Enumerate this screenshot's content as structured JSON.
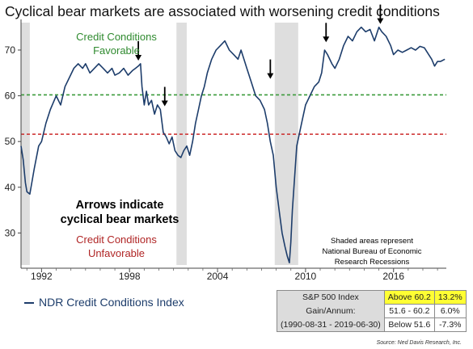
{
  "title": "Cyclical bear markets are associated with worsening credit conditions",
  "chart_data": {
    "type": "line",
    "series": [
      {
        "name": "NDR Credit Conditions Index",
        "color": "#1d3d6b",
        "x": [
          1990.6,
          1990.75,
          1990.9,
          1991.0,
          1991.2,
          1991.5,
          1991.8,
          1992.0,
          1992.3,
          1992.6,
          1993.0,
          1993.3,
          1993.6,
          1993.9,
          1994.2,
          1994.5,
          1994.8,
          1995.0,
          1995.3,
          1995.6,
          1995.9,
          1996.2,
          1996.5,
          1996.8,
          1997.0,
          1997.3,
          1997.6,
          1997.9,
          1998.2,
          1998.4,
          1998.6,
          1998.75,
          1998.85,
          1999.0,
          1999.15,
          1999.3,
          1999.5,
          1999.7,
          1999.9,
          2000.1,
          2000.3,
          2000.5,
          2000.7,
          2000.9,
          2001.1,
          2001.3,
          2001.5,
          2001.7,
          2001.9,
          2002.1,
          2002.3,
          2002.5,
          2002.7,
          2002.9,
          2003.1,
          2003.3,
          2003.6,
          2003.9,
          2004.2,
          2004.5,
          2004.8,
          2005.1,
          2005.4,
          2005.6,
          2005.8,
          2006.0,
          2006.3,
          2006.6,
          2006.9,
          2007.2,
          2007.4,
          2007.6,
          2007.8,
          2008.0,
          2008.2,
          2008.4,
          2008.6,
          2008.75,
          2008.9,
          2009.0,
          2009.1,
          2009.25,
          2009.4,
          2009.6,
          2009.8,
          2010.0,
          2010.3,
          2010.6,
          2010.9,
          2011.1,
          2011.3,
          2011.5,
          2011.8,
          2012.0,
          2012.3,
          2012.6,
          2012.9,
          2013.2,
          2013.5,
          2013.8,
          2014.1,
          2014.4,
          2014.7,
          2015.0,
          2015.2,
          2015.5,
          2015.8,
          2016.0,
          2016.3,
          2016.6,
          2016.9,
          2017.2,
          2017.5,
          2017.8,
          2018.1,
          2018.4,
          2018.6,
          2018.8,
          2019.0,
          2019.2,
          2019.5
        ],
        "y": [
          49,
          46,
          41,
          39,
          38.5,
          44,
          49,
          50,
          54,
          57,
          60,
          58,
          62,
          64,
          66,
          67,
          66,
          67,
          65,
          66,
          67,
          66,
          65,
          66,
          64.5,
          65,
          66,
          64.5,
          65.5,
          66,
          66.5,
          67,
          62,
          58,
          61,
          58,
          59,
          56,
          58,
          57,
          52,
          51,
          49.5,
          51,
          48,
          47,
          46.5,
          48,
          49,
          47,
          50,
          54,
          57,
          60,
          62,
          65,
          68,
          70,
          71,
          72,
          70,
          69,
          68,
          70,
          68,
          66,
          63,
          60,
          59,
          57,
          54,
          50,
          47,
          40,
          35,
          30,
          27,
          25,
          23.5,
          28,
          35,
          42,
          49,
          52,
          55,
          58,
          60,
          62,
          63,
          65,
          70,
          69,
          67,
          66,
          68,
          71,
          73,
          72,
          74,
          75,
          74,
          74.5,
          72,
          75,
          74,
          73,
          71,
          69,
          70,
          69.5,
          70,
          70.5,
          70,
          70.8,
          70.5,
          69,
          68,
          66.5,
          67.5,
          67.5,
          68
        ]
      }
    ],
    "xlim": [
      1990.6,
      2019.6
    ],
    "ylim": [
      23,
      76
    ],
    "xticks": [
      "1992",
      "1998",
      "2004",
      "2010",
      "2016"
    ],
    "yticks": [
      30,
      40,
      50,
      60,
      70
    ],
    "recessions": [
      [
        1990.6,
        1991.2
      ],
      [
        2001.2,
        2001.9
      ],
      [
        2007.9,
        2009.5
      ]
    ],
    "reference_lines": [
      {
        "value": 60.2,
        "color": "#3a9a3a"
      },
      {
        "value": 51.6,
        "color": "#cc2a2a"
      }
    ],
    "arrows": [
      {
        "x": 1998.6,
        "y": 67
      },
      {
        "x": 2000.4,
        "y": 57
      },
      {
        "x": 2007.6,
        "y": 63
      },
      {
        "x": 2011.4,
        "y": 71
      },
      {
        "x": 2015.1,
        "y": 75
      }
    ],
    "annotations": {
      "favorable_line1": "Credit Conditions",
      "favorable_line2": "Favorable",
      "unfavorable_line1": "Credit Conditions",
      "unfavorable_line2": "Unfavorable",
      "arrows_line1": "Arrows indicate",
      "arrows_line2": "cyclical bear markets",
      "shaded_line1": "Shaded areas represent",
      "shaded_line2": "National Bureau of Economic",
      "shaded_line3": "Research Recessions"
    },
    "grid": false,
    "legend_position": "bottom-left"
  },
  "legend": {
    "label": "NDR Credit Conditions Index"
  },
  "table": {
    "row1": {
      "label": "S&P 500 Index",
      "range": "Above 60.2",
      "ret": "13.2%"
    },
    "row2": {
      "label": "Gain/Annum:",
      "range": "51.6 - 60.2",
      "ret": "6.0%"
    },
    "row3": {
      "label": "(1990-08-31 - 2019-06-30)",
      "range": "Below 51.6",
      "ret": "-7.3%"
    }
  },
  "source": "Source: Ned Davis Research, Inc."
}
